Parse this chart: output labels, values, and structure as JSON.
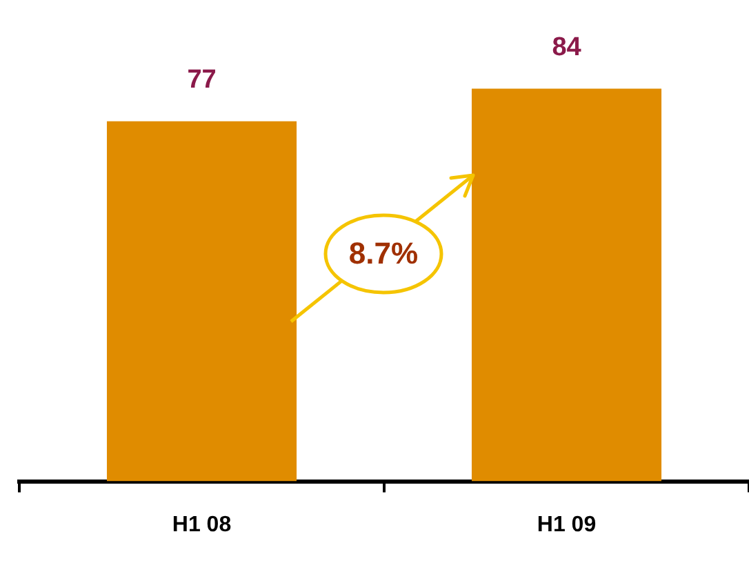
{
  "chart_data": {
    "type": "bar",
    "categories": [
      "H1 08",
      "H1 09"
    ],
    "values": [
      77,
      84
    ],
    "color": "#e08c00",
    "data_labels": true,
    "grid": false,
    "legend": false,
    "tick_labels": "x",
    "annotations": [
      "8.7%"
    ]
  }
}
